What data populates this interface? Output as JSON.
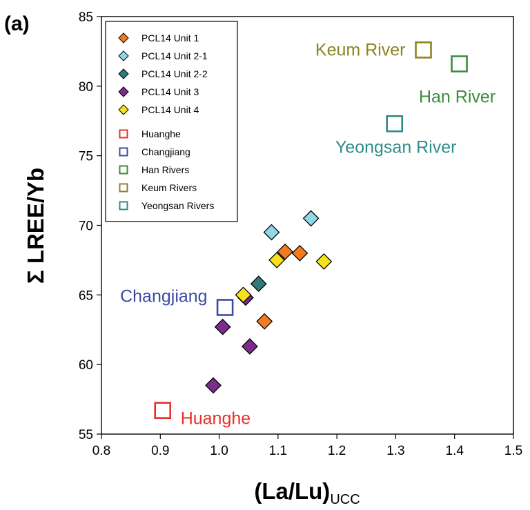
{
  "figure": {
    "panel_label": "(a)",
    "y_axis_label": "Σ LREE/Yb",
    "x_axis_label_main": "(La/Lu)",
    "x_axis_label_sub": "UCC"
  },
  "chart_data": {
    "type": "scatter",
    "xlim": [
      0.8,
      1.5
    ],
    "ylim": [
      55,
      85
    ],
    "x_ticks": [
      "0.8",
      "0.9",
      "1.0",
      "1.1",
      "1.2",
      "1.3",
      "1.4",
      "1.5"
    ],
    "y_ticks": [
      "55",
      "60",
      "65",
      "70",
      "75",
      "80",
      "85"
    ],
    "grid": false,
    "legend_position": "top-left",
    "series": [
      {
        "name": "PCL14 Unit 1",
        "marker": "diamond",
        "color": "#F47B20",
        "points": [
          [
            1.112,
            68.1
          ],
          [
            1.137,
            68.0
          ],
          [
            1.077,
            63.1
          ]
        ]
      },
      {
        "name": "PCL14 Unit 2-1",
        "marker": "diamond",
        "color": "#8ED8E8",
        "points": [
          [
            1.089,
            69.5
          ],
          [
            1.156,
            70.5
          ]
        ]
      },
      {
        "name": "PCL14 Unit 2-2",
        "marker": "diamond",
        "color": "#2E7B7B",
        "points": [
          [
            1.067,
            65.8
          ]
        ]
      },
      {
        "name": "PCL14 Unit 3",
        "marker": "diamond",
        "color": "#7B2C8C",
        "points": [
          [
            1.045,
            64.8
          ],
          [
            1.006,
            62.7
          ],
          [
            1.052,
            61.3
          ],
          [
            0.99,
            58.5
          ]
        ]
      },
      {
        "name": "PCL14 Unit 4",
        "marker": "diamond",
        "color": "#F5E21A",
        "points": [
          [
            1.098,
            67.5
          ],
          [
            1.178,
            67.4
          ],
          [
            1.041,
            65.0
          ]
        ]
      },
      {
        "name": "Huanghe",
        "marker": "open-square",
        "color": "#E8302A",
        "points": [
          [
            0.904,
            56.7
          ]
        ],
        "label": "Huanghe",
        "label_color": "#E8302A"
      },
      {
        "name": "Changjiang",
        "marker": "open-square",
        "color": "#3B4BA3",
        "points": [
          [
            1.01,
            64.1
          ]
        ],
        "label": "Changjiang",
        "label_color": "#3B4BA3"
      },
      {
        "name": "Han Rivers",
        "marker": "open-square",
        "color": "#3A8C3A",
        "points": [
          [
            1.408,
            81.6
          ]
        ],
        "label": "Han River",
        "label_color": "#3A8C3A"
      },
      {
        "name": "Keum Rivers",
        "marker": "open-square",
        "color": "#8C8420",
        "points": [
          [
            1.347,
            82.6
          ]
        ],
        "label": "Keum River",
        "label_color": "#8C8420"
      },
      {
        "name": "Yeongsan Rivers",
        "marker": "open-square",
        "color": "#2E8C8C",
        "points": [
          [
            1.298,
            77.3
          ]
        ],
        "label": "Yeongsan River",
        "label_color": "#2E8C8C"
      }
    ]
  }
}
